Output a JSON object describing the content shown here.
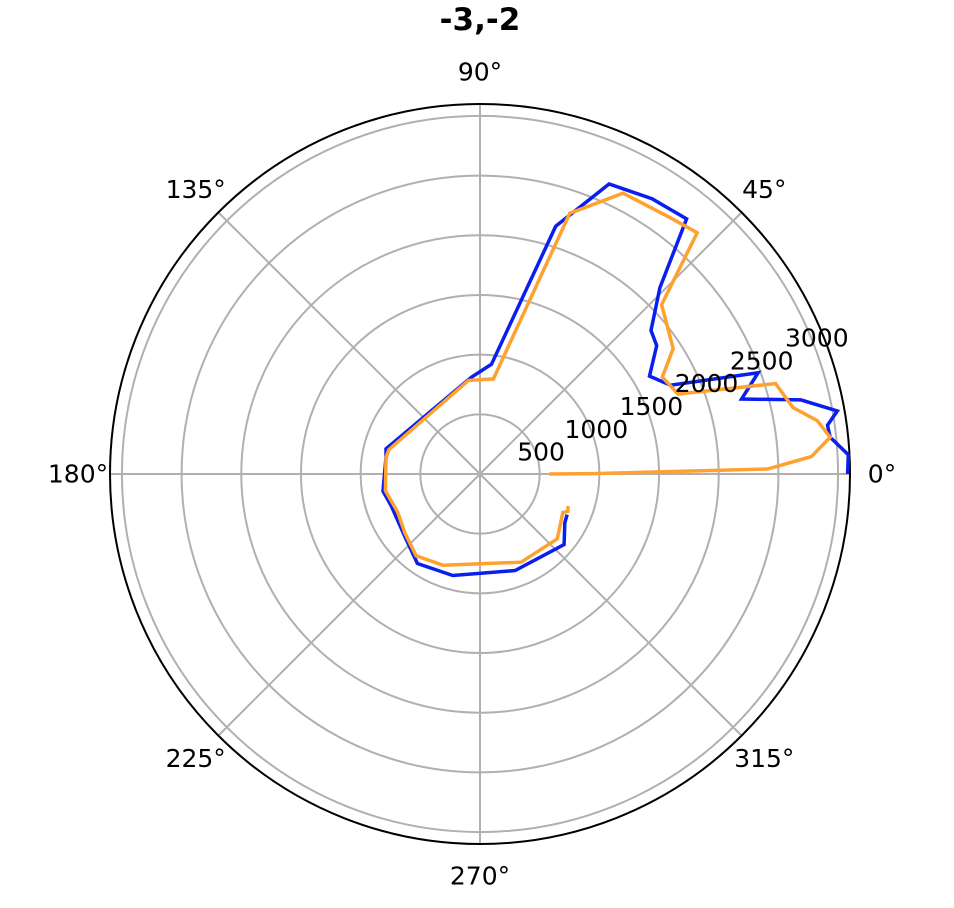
{
  "chart_data": {
    "type": "polar-line",
    "title": "-3,-2",
    "angle_unit": "degrees",
    "angular_ticks": [
      "0°",
      "45°",
      "90°",
      "135°",
      "180°",
      "225°",
      "270°",
      "315°"
    ],
    "radial_ticks": [
      500,
      1000,
      1500,
      2000,
      2500,
      3000
    ],
    "radial_tick_labels": [
      "500",
      "1000",
      "1500",
      "2000",
      "2500",
      "3000"
    ],
    "rlim": [
      0,
      3100
    ],
    "grid": true,
    "series": [
      {
        "color": "#0a1ef0",
        "points": [
          [
            0,
            3080
          ],
          [
            3,
            3090
          ],
          [
            6,
            2950
          ],
          [
            8,
            2940
          ],
          [
            10,
            3040
          ],
          [
            13,
            2760
          ],
          [
            16,
            2280
          ],
          [
            20,
            2480
          ],
          [
            25,
            1760
          ],
          [
            30,
            1640
          ],
          [
            36,
            1830
          ],
          [
            40,
            1870
          ],
          [
            46,
            2170
          ],
          [
            51,
            2750
          ],
          [
            58,
            2720
          ],
          [
            66,
            2660
          ],
          [
            73,
            2170
          ],
          [
            84,
            925
          ],
          [
            95,
            815
          ],
          [
            165,
            815
          ],
          [
            170,
            800
          ],
          [
            180,
            800
          ],
          [
            190,
            825
          ],
          [
            200,
            790
          ],
          [
            220,
            820
          ],
          [
            235,
            915
          ],
          [
            255,
            880
          ],
          [
            290,
            860
          ],
          [
            320,
            920
          ],
          [
            330,
            820
          ],
          [
            335,
            805
          ]
        ]
      },
      {
        "color": "#ffa12f",
        "points": [
          [
            0,
            580
          ],
          [
            0.2,
            950
          ],
          [
            1,
            2410
          ],
          [
            3,
            2780
          ],
          [
            6,
            2950
          ],
          [
            9,
            2860
          ],
          [
            12,
            2680
          ],
          [
            17,
            2590
          ],
          [
            22,
            1790
          ],
          [
            28,
            1730
          ],
          [
            33,
            1930
          ],
          [
            43,
            2080
          ],
          [
            48,
            2720
          ],
          [
            54,
            2670
          ],
          [
            63,
            2640
          ],
          [
            71,
            2310
          ],
          [
            82,
            805
          ],
          [
            97,
            790
          ],
          [
            165,
            790
          ],
          [
            170,
            800
          ],
          [
            180,
            790
          ],
          [
            190,
            805
          ],
          [
            205,
            760
          ],
          [
            218,
            800
          ],
          [
            232,
            870
          ],
          [
            248,
            825
          ],
          [
            295,
            815
          ],
          [
            320,
            845
          ],
          [
            335,
            765
          ],
          [
            337,
            800
          ],
          [
            340,
            785
          ]
        ]
      }
    ]
  }
}
